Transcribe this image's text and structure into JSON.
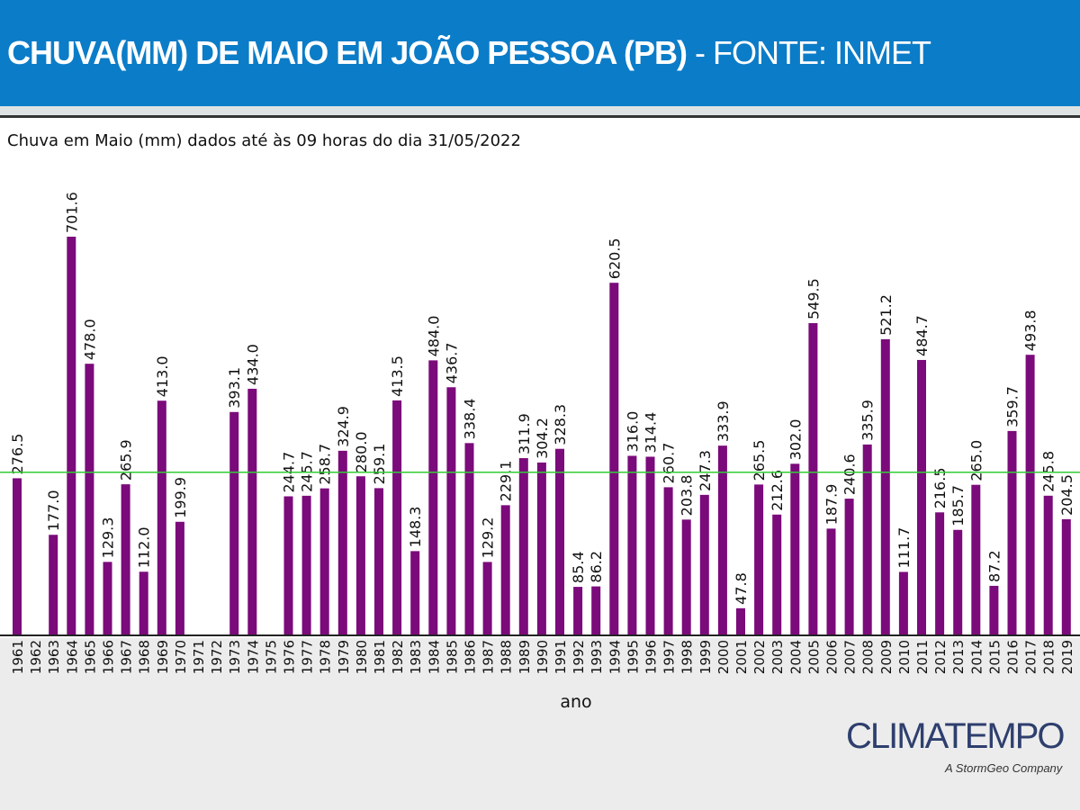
{
  "header": {
    "title_main": "CHUVA(MM) DE MAIO EM JOÃO PESSOA (PB)",
    "title_source": " - FONTE: INMET"
  },
  "logo": {
    "name": "CLIMATEMPO",
    "tagline": "A StormGeo Company"
  },
  "colors": {
    "header": "#0b7cc8",
    "bar": "#7b0a7b",
    "mean_line": "#33cc33"
  },
  "chart_data": {
    "type": "bar",
    "title": "Chuva em Maio (mm) dados até às 09 horas do dia 31/05/2022",
    "xlabel": "ano",
    "ylabel": "",
    "ylim": [
      0,
      720
    ],
    "grid": false,
    "mean_line": 287,
    "categories": [
      "1961",
      "1962",
      "1963",
      "1964",
      "1965",
      "1966",
      "1967",
      "1968",
      "1969",
      "1970",
      "1971",
      "1972",
      "1973",
      "1974",
      "1975",
      "1976",
      "1977",
      "1978",
      "1979",
      "1980",
      "1981",
      "1982",
      "1983",
      "1984",
      "1985",
      "1986",
      "1987",
      "1988",
      "1989",
      "1990",
      "1991",
      "1992",
      "1993",
      "1994",
      "1995",
      "1996",
      "1997",
      "1998",
      "1999",
      "2000",
      "2001",
      "2002",
      "2003",
      "2004",
      "2005",
      "2006",
      "2007",
      "2008",
      "2009",
      "2010",
      "2011",
      "2012",
      "2013",
      "2014",
      "2015",
      "2016",
      "2017",
      "2018",
      "2019"
    ],
    "values": [
      276.5,
      null,
      177.0,
      701.6,
      478.0,
      129.3,
      265.9,
      112.0,
      413.0,
      199.9,
      null,
      null,
      393.1,
      434.0,
      null,
      244.7,
      245.7,
      258.7,
      324.9,
      280.0,
      259.1,
      413.5,
      148.3,
      484.0,
      436.7,
      338.4,
      129.2,
      229.1,
      311.9,
      304.2,
      328.3,
      85.4,
      86.2,
      620.5,
      316.0,
      314.4,
      260.7,
      203.8,
      247.3,
      333.9,
      47.8,
      265.5,
      212.6,
      302.0,
      549.5,
      187.9,
      240.6,
      335.9,
      521.2,
      111.7,
      484.7,
      216.5,
      185.7,
      265.0,
      87.2,
      359.7,
      493.8,
      245.8,
      204.5
    ]
  }
}
